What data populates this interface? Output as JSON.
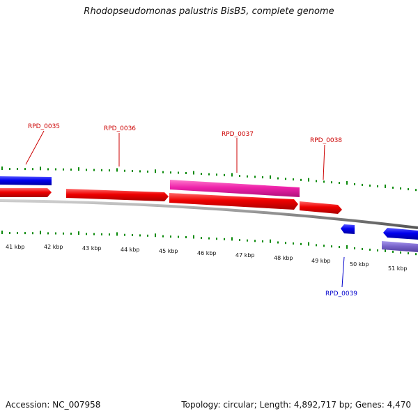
{
  "title": "Rhodopseudomonas palustris BisB5, complete genome",
  "footer": {
    "accession": "Accession: NC_007958",
    "summary": "Topology: circular; Length: 4,892,717 bp; Genes: 4,470"
  },
  "colors": {
    "forward_gene": "#ee0000",
    "reverse_gene": "#0000ee",
    "highlight_forward": "#ee22aa",
    "highlight_reverse": "#7a66cc",
    "backbone": "#8c8c8c",
    "ticks": "#0a8a0a",
    "forward_label": "#cc0000",
    "reverse_label": "#0000cc"
  },
  "axis": {
    "unit_labels": [
      "41 kbp",
      "42 kbp",
      "43 kbp",
      "44 kbp",
      "45 kbp",
      "46 kbp",
      "47 kbp",
      "48 kbp",
      "49 kbp",
      "50 kbp",
      "51 kbp"
    ]
  },
  "gene_labels": {
    "forward": [
      "RPD_0035",
      "RPD_0036",
      "RPD_0037",
      "RPD_0038"
    ],
    "reverse": [
      "RPD_0039"
    ]
  }
}
